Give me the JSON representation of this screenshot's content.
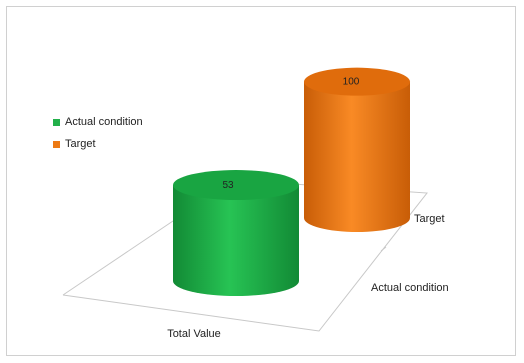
{
  "chart_data": {
    "type": "bar",
    "style": "3d-cylinder",
    "categories": [
      "Total Value"
    ],
    "series": [
      {
        "name": "Actual condition",
        "values": [
          53
        ],
        "color": "#22b04a"
      },
      {
        "name": "Target",
        "values": [
          100
        ],
        "color": "#ed7a14"
      }
    ],
    "depth_labels": [
      "Actual condition",
      "Target"
    ],
    "data_labels": [
      "53",
      "100"
    ],
    "legend": {
      "position": "left",
      "items": [
        {
          "label": "Actual condition",
          "color": "#22b04a"
        },
        {
          "label": "Target",
          "color": "#ed7a14"
        }
      ]
    },
    "title": "",
    "xlabel": "",
    "ylabel": "",
    "ylim": [
      0,
      100
    ],
    "grid": false
  }
}
